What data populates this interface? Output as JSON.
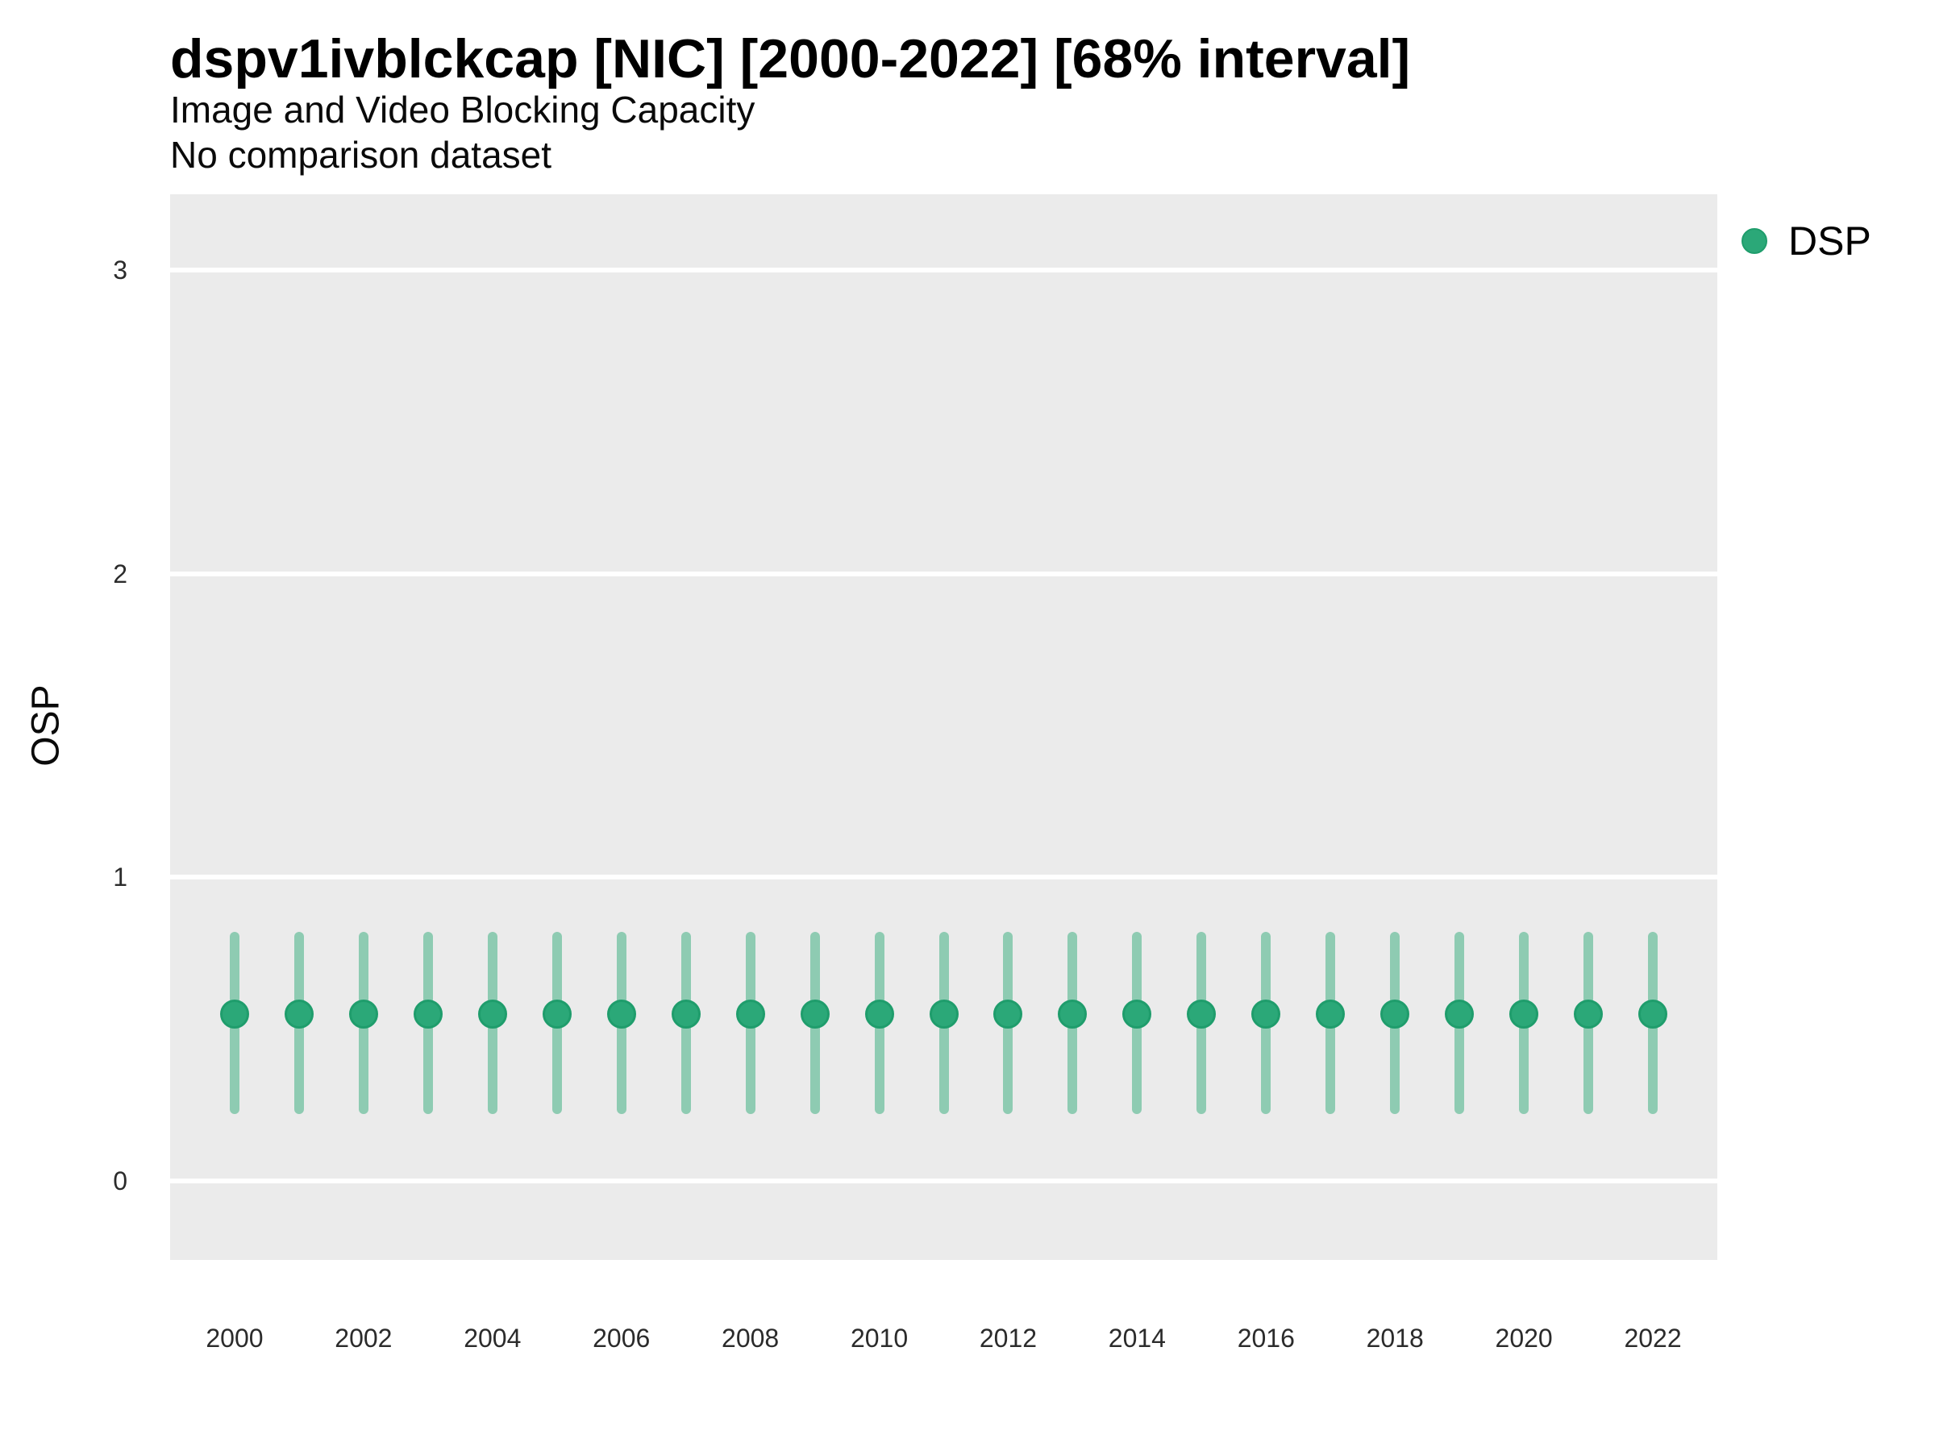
{
  "header": {
    "title": "dspv1ivblckcap [NIC] [2000-2022] [68% interval]",
    "subtitle": "Image and Video Blocking Capacity",
    "note": "No comparison dataset"
  },
  "legend": {
    "position": "right-top",
    "entries": [
      {
        "label": "DSP",
        "color": "#2ba878"
      }
    ]
  },
  "chart_data": {
    "type": "scatter",
    "title": "dspv1ivblckcap [NIC] [2000-2022] [68% interval]",
    "subtitle": "Image and Video Blocking Capacity",
    "note": "No comparison dataset",
    "interval": "68%",
    "xlabel": "",
    "ylabel": "OSP",
    "xlim": [
      1999,
      2023
    ],
    "ylim": [
      -0.26,
      3.25
    ],
    "x_ticks": [
      2000,
      2002,
      2004,
      2006,
      2008,
      2010,
      2012,
      2014,
      2016,
      2018,
      2020,
      2022
    ],
    "y_ticks": [
      0,
      1,
      2,
      3
    ],
    "grid": "horizontal-major-only",
    "panel_background": "#ebebeb",
    "gridline_color": "#ffffff",
    "series": [
      {
        "name": "DSP",
        "point_color": "#2ba878",
        "point_border_color": "#1f9d6c",
        "interval_color": "#8ecbb2",
        "x": [
          2000,
          2001,
          2002,
          2003,
          2004,
          2005,
          2006,
          2007,
          2008,
          2009,
          2010,
          2011,
          2012,
          2013,
          2014,
          2015,
          2016,
          2017,
          2018,
          2019,
          2020,
          2021,
          2022
        ],
        "y": [
          0.55,
          0.55,
          0.55,
          0.55,
          0.55,
          0.55,
          0.55,
          0.55,
          0.55,
          0.55,
          0.55,
          0.55,
          0.55,
          0.55,
          0.55,
          0.55,
          0.55,
          0.55,
          0.55,
          0.55,
          0.55,
          0.55,
          0.55
        ],
        "y_low": [
          0.22,
          0.22,
          0.22,
          0.22,
          0.22,
          0.22,
          0.22,
          0.22,
          0.22,
          0.22,
          0.22,
          0.22,
          0.22,
          0.22,
          0.22,
          0.22,
          0.22,
          0.22,
          0.22,
          0.22,
          0.22,
          0.22,
          0.22
        ],
        "y_high": [
          0.82,
          0.82,
          0.82,
          0.82,
          0.82,
          0.82,
          0.82,
          0.82,
          0.82,
          0.82,
          0.82,
          0.82,
          0.82,
          0.82,
          0.82,
          0.82,
          0.82,
          0.82,
          0.82,
          0.82,
          0.82,
          0.82,
          0.82
        ]
      }
    ]
  }
}
